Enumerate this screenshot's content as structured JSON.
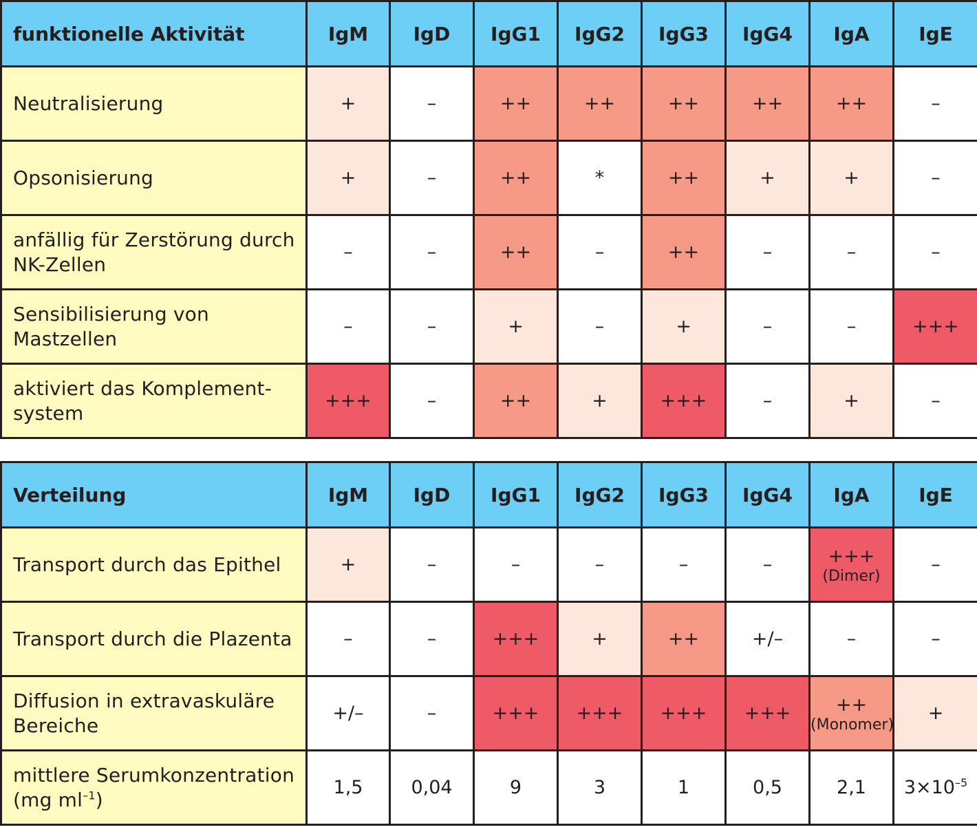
{
  "isotypes": [
    "IgM",
    "IgD",
    "IgG1",
    "IgG2",
    "IgG3",
    "IgG4",
    "IgA",
    "IgE"
  ],
  "table1": {
    "header": "funktionelle Aktivität",
    "rows": [
      {
        "label": "Neutralisierung",
        "cells": [
          {
            "v": "+",
            "l": 1
          },
          {
            "v": "–",
            "l": 0
          },
          {
            "v": "++",
            "l": 2
          },
          {
            "v": "++",
            "l": 2
          },
          {
            "v": "++",
            "l": 2
          },
          {
            "v": "++",
            "l": 2
          },
          {
            "v": "++",
            "l": 2
          },
          {
            "v": "–",
            "l": 0
          }
        ]
      },
      {
        "label": "Opsonisierung",
        "cells": [
          {
            "v": "+",
            "l": 1
          },
          {
            "v": "–",
            "l": 0
          },
          {
            "v": "++",
            "l": 2
          },
          {
            "v": "*",
            "l": 0
          },
          {
            "v": "++",
            "l": 2
          },
          {
            "v": "+",
            "l": 1
          },
          {
            "v": "+",
            "l": 1
          },
          {
            "v": "–",
            "l": 0
          }
        ]
      },
      {
        "label": "anfällig für Zerstörung durch NK-Zellen",
        "cells": [
          {
            "v": "–",
            "l": 0
          },
          {
            "v": "–",
            "l": 0
          },
          {
            "v": "++",
            "l": 2
          },
          {
            "v": "–",
            "l": 0
          },
          {
            "v": "++",
            "l": 2
          },
          {
            "v": "–",
            "l": 0
          },
          {
            "v": "–",
            "l": 0
          },
          {
            "v": "–",
            "l": 0
          }
        ]
      },
      {
        "label": "Sensibilisierung von Mastzellen",
        "cells": [
          {
            "v": "–",
            "l": 0
          },
          {
            "v": "–",
            "l": 0
          },
          {
            "v": "+",
            "l": 1
          },
          {
            "v": "–",
            "l": 0
          },
          {
            "v": "+",
            "l": 1
          },
          {
            "v": "–",
            "l": 0
          },
          {
            "v": "–",
            "l": 0
          },
          {
            "v": "+++",
            "l": 3
          }
        ]
      },
      {
        "label": "aktiviert das Komplement-system",
        "cells": [
          {
            "v": "+++",
            "l": 3
          },
          {
            "v": "–",
            "l": 0
          },
          {
            "v": "++",
            "l": 2
          },
          {
            "v": "+",
            "l": 1
          },
          {
            "v": "+++",
            "l": 3
          },
          {
            "v": "–",
            "l": 0
          },
          {
            "v": "+",
            "l": 1
          },
          {
            "v": "–",
            "l": 0
          }
        ]
      }
    ]
  },
  "table2": {
    "header": "Verteilung",
    "rows": [
      {
        "label": "Transport durch das Epithel",
        "cells": [
          {
            "v": "+",
            "l": 1
          },
          {
            "v": "–",
            "l": 0
          },
          {
            "v": "–",
            "l": 0
          },
          {
            "v": "–",
            "l": 0
          },
          {
            "v": "–",
            "l": 0
          },
          {
            "v": "–",
            "l": 0
          },
          {
            "v": "+++",
            "l": 3,
            "note": "(Dimer)"
          },
          {
            "v": "–",
            "l": 0
          }
        ]
      },
      {
        "label": "Transport durch die Plazenta",
        "cells": [
          {
            "v": "–",
            "l": 0
          },
          {
            "v": "–",
            "l": 0
          },
          {
            "v": "+++",
            "l": 3
          },
          {
            "v": "+",
            "l": 1
          },
          {
            "v": "++",
            "l": 2
          },
          {
            "v": "+/–",
            "l": 0
          },
          {
            "v": "–",
            "l": 0
          },
          {
            "v": "–",
            "l": 0
          }
        ]
      },
      {
        "label": "Diffusion in extravaskuläre Bereiche",
        "cells": [
          {
            "v": "+/–",
            "l": 0
          },
          {
            "v": "–",
            "l": 0
          },
          {
            "v": "+++",
            "l": 3
          },
          {
            "v": "+++",
            "l": 3
          },
          {
            "v": "+++",
            "l": 3
          },
          {
            "v": "+++",
            "l": 3
          },
          {
            "v": "++",
            "l": 2,
            "note": "(Monomer)"
          },
          {
            "v": "+",
            "l": 1
          }
        ]
      }
    ],
    "serum": {
      "label": "mittlere Serumkonzentration",
      "unit_text": "(mg ml",
      "unit_exp": "–1",
      "unit_close": ")",
      "values": [
        "1,5",
        "0,04",
        "9",
        "3",
        "1",
        "0,5",
        "2,1"
      ],
      "last_base": "3×10",
      "last_exp": "–5"
    }
  },
  "colors": {
    "header": "#6dcff6",
    "label": "#fffbc1",
    "level0": "#ffffff",
    "level1": "#fde6dc",
    "level2": "#f69a87",
    "level3": "#ef5a67"
  }
}
